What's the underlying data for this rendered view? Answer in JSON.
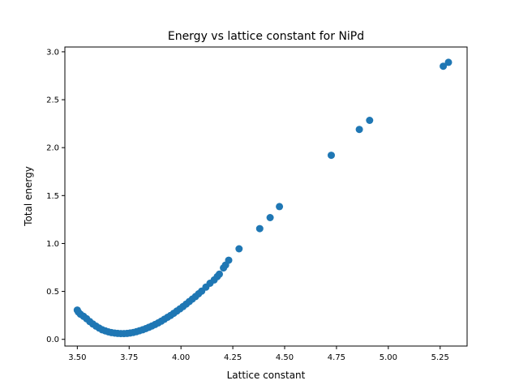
{
  "chart_data": {
    "type": "scatter",
    "title": "Energy vs lattice constant for NiPd",
    "xlabel": "Lattice constant",
    "ylabel": "Total energy",
    "xlim": [
      3.44,
      5.38
    ],
    "ylim": [
      -0.07,
      3.05
    ],
    "xticks": [
      3.5,
      3.75,
      4.0,
      4.25,
      4.5,
      4.75,
      5.0,
      5.25
    ],
    "xtick_labels": [
      "3.50",
      "3.75",
      "4.00",
      "4.25",
      "4.50",
      "4.75",
      "5.00",
      "5.25"
    ],
    "yticks": [
      0.0,
      0.5,
      1.0,
      1.5,
      2.0,
      2.5,
      3.0
    ],
    "ytick_labels": [
      "0.0",
      "0.5",
      "1.0",
      "1.5",
      "2.0",
      "2.5",
      "3.0"
    ],
    "grid": false,
    "marker_color": "#1f77b4",
    "points": [
      {
        "x": 3.5,
        "y": 0.305
      },
      {
        "x": 3.505,
        "y": 0.285
      },
      {
        "x": 3.515,
        "y": 0.262
      },
      {
        "x": 3.53,
        "y": 0.24
      },
      {
        "x": 3.545,
        "y": 0.215
      },
      {
        "x": 3.56,
        "y": 0.185
      },
      {
        "x": 3.575,
        "y": 0.16
      },
      {
        "x": 3.59,
        "y": 0.138
      },
      {
        "x": 3.605,
        "y": 0.118
      },
      {
        "x": 3.62,
        "y": 0.1
      },
      {
        "x": 3.635,
        "y": 0.088
      },
      {
        "x": 3.65,
        "y": 0.078
      },
      {
        "x": 3.665,
        "y": 0.07
      },
      {
        "x": 3.68,
        "y": 0.065
      },
      {
        "x": 3.695,
        "y": 0.062
      },
      {
        "x": 3.71,
        "y": 0.06
      },
      {
        "x": 3.725,
        "y": 0.06
      },
      {
        "x": 3.74,
        "y": 0.062
      },
      {
        "x": 3.755,
        "y": 0.066
      },
      {
        "x": 3.77,
        "y": 0.072
      },
      {
        "x": 3.785,
        "y": 0.08
      },
      {
        "x": 3.8,
        "y": 0.09
      },
      {
        "x": 3.815,
        "y": 0.1
      },
      {
        "x": 3.83,
        "y": 0.112
      },
      {
        "x": 3.845,
        "y": 0.125
      },
      {
        "x": 3.86,
        "y": 0.14
      },
      {
        "x": 3.875,
        "y": 0.155
      },
      {
        "x": 3.89,
        "y": 0.172
      },
      {
        "x": 3.905,
        "y": 0.19
      },
      {
        "x": 3.92,
        "y": 0.21
      },
      {
        "x": 3.935,
        "y": 0.23
      },
      {
        "x": 3.95,
        "y": 0.25
      },
      {
        "x": 3.965,
        "y": 0.272
      },
      {
        "x": 3.98,
        "y": 0.295
      },
      {
        "x": 3.995,
        "y": 0.318
      },
      {
        "x": 4.01,
        "y": 0.342
      },
      {
        "x": 4.025,
        "y": 0.368
      },
      {
        "x": 4.04,
        "y": 0.394
      },
      {
        "x": 4.055,
        "y": 0.42
      },
      {
        "x": 4.07,
        "y": 0.447
      },
      {
        "x": 4.085,
        "y": 0.475
      },
      {
        "x": 4.1,
        "y": 0.503
      },
      {
        "x": 4.12,
        "y": 0.545
      },
      {
        "x": 4.14,
        "y": 0.585
      },
      {
        "x": 4.16,
        "y": 0.62
      },
      {
        "x": 4.175,
        "y": 0.655
      },
      {
        "x": 4.185,
        "y": 0.68
      },
      {
        "x": 4.205,
        "y": 0.745
      },
      {
        "x": 4.215,
        "y": 0.775
      },
      {
        "x": 4.23,
        "y": 0.825
      },
      {
        "x": 4.28,
        "y": 0.945
      },
      {
        "x": 4.38,
        "y": 1.155
      },
      {
        "x": 4.43,
        "y": 1.27
      },
      {
        "x": 4.475,
        "y": 1.385
      },
      {
        "x": 4.725,
        "y": 1.92
      },
      {
        "x": 4.86,
        "y": 2.19
      },
      {
        "x": 4.91,
        "y": 2.285
      },
      {
        "x": 5.265,
        "y": 2.85
      },
      {
        "x": 5.29,
        "y": 2.89
      }
    ]
  }
}
